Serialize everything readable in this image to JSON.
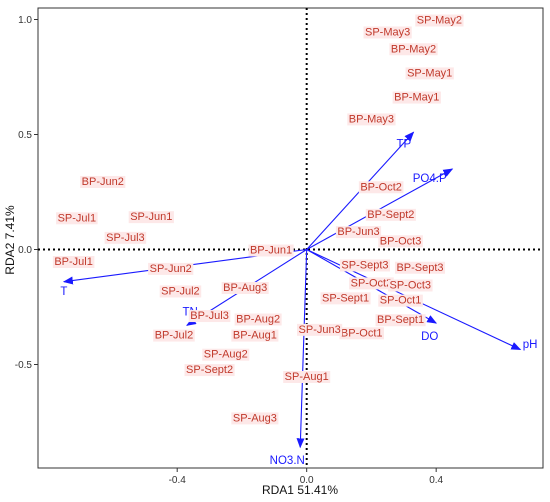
{
  "chart_data": {
    "type": "scatter",
    "title": "",
    "xlabel": "RDA1 51.41%",
    "ylabel": "RDA2 7.41%",
    "xlim": [
      -0.83,
      0.73
    ],
    "ylim": [
      -0.95,
      1.05
    ],
    "x_ticks": [
      -0.4,
      0.0,
      0.4
    ],
    "x_tick_labels": [
      "-0.4",
      "0.0",
      "0.4"
    ],
    "y_ticks": [
      -0.5,
      0.0,
      0.5,
      1.0
    ],
    "y_tick_labels": [
      "-0.5",
      "0.0",
      "0.5",
      "1.0"
    ],
    "grid": false,
    "reference_lines": {
      "x": 0,
      "y": 0,
      "style": "dotted"
    },
    "colors": {
      "site_text": "#c0392b",
      "site_background": "#fde8e8",
      "vector": "#1a1aff",
      "axis": "#333333"
    },
    "sites": [
      {
        "label": "SP-May2",
        "x": 0.41,
        "y": 1.0
      },
      {
        "label": "SP-May3",
        "x": 0.25,
        "y": 0.948
      },
      {
        "label": "BP-May2",
        "x": 0.33,
        "y": 0.875
      },
      {
        "label": "SP-May1",
        "x": 0.38,
        "y": 0.77
      },
      {
        "label": "BP-May1",
        "x": 0.34,
        "y": 0.665
      },
      {
        "label": "BP-May3",
        "x": 0.2,
        "y": 0.57
      },
      {
        "label": "BP-Oct2",
        "x": 0.23,
        "y": 0.275
      },
      {
        "label": "BP-Sept2",
        "x": 0.26,
        "y": 0.155
      },
      {
        "label": "BP-Jun3",
        "x": 0.16,
        "y": 0.08
      },
      {
        "label": "BP-Oct3",
        "x": 0.29,
        "y": 0.04
      },
      {
        "label": "SP-Sept3",
        "x": 0.18,
        "y": -0.065
      },
      {
        "label": "BP-Sept3",
        "x": 0.35,
        "y": -0.075
      },
      {
        "label": "SP-Oct2",
        "x": 0.2,
        "y": -0.143
      },
      {
        "label": "SP-Oct3",
        "x": 0.32,
        "y": -0.152
      },
      {
        "label": "SP-Sept1",
        "x": 0.12,
        "y": -0.208
      },
      {
        "label": "SP-Oct1",
        "x": 0.29,
        "y": -0.218
      },
      {
        "label": "BP-Sept1",
        "x": 0.29,
        "y": -0.303
      },
      {
        "label": "BP-Oct1",
        "x": 0.17,
        "y": -0.36
      },
      {
        "label": "SP-Jun3",
        "x": 0.04,
        "y": -0.345
      },
      {
        "label": "SP-Aug1",
        "x": 0.0,
        "y": -0.55
      },
      {
        "label": "SP-Aug3",
        "x": -0.16,
        "y": -0.73
      },
      {
        "label": "BP-Jun2",
        "x": -0.63,
        "y": 0.298
      },
      {
        "label": "SP-Jun1",
        "x": -0.48,
        "y": 0.145
      },
      {
        "label": "SP-Jul1",
        "x": -0.71,
        "y": 0.14
      },
      {
        "label": "SP-Jul3",
        "x": -0.56,
        "y": 0.055
      },
      {
        "label": "BP-Jul1",
        "x": -0.72,
        "y": -0.05
      },
      {
        "label": "SP-Jun2",
        "x": -0.42,
        "y": -0.08
      },
      {
        "label": "BP-Jun1",
        "x": -0.11,
        "y": 0.0
      },
      {
        "label": "BP-Aug3",
        "x": -0.19,
        "y": -0.163
      },
      {
        "label": "SP-Jul2",
        "x": -0.39,
        "y": -0.178
      },
      {
        "label": "BP-Jul3",
        "x": -0.3,
        "y": -0.285
      },
      {
        "label": "BP-Aug2",
        "x": -0.15,
        "y": -0.3
      },
      {
        "label": "BP-Aug1",
        "x": -0.16,
        "y": -0.37
      },
      {
        "label": "BP-Jul2",
        "x": -0.41,
        "y": -0.37
      },
      {
        "label": "SP-Aug2",
        "x": -0.25,
        "y": -0.453
      },
      {
        "label": "SP-Sept2",
        "x": -0.3,
        "y": -0.52
      }
    ],
    "vectors": [
      {
        "label": "TP",
        "x": 0.33,
        "y": 0.51,
        "label_x": 0.3,
        "label_y": 0.46
      },
      {
        "label": "PO4.P",
        "x": 0.45,
        "y": 0.35,
        "label_x": 0.38,
        "label_y": 0.31
      },
      {
        "label": "T",
        "x": -0.75,
        "y": -0.14,
        "label_x": -0.75,
        "label_y": -0.18
      },
      {
        "label": "TN",
        "x": -0.37,
        "y": -0.33,
        "label_x": -0.36,
        "label_y": -0.27
      },
      {
        "label": "NO3.N",
        "x": -0.02,
        "y": -0.86,
        "label_x": -0.06,
        "label_y": -0.915
      },
      {
        "label": "DO",
        "x": 0.4,
        "y": -0.32,
        "label_x": 0.38,
        "label_y": -0.375
      },
      {
        "label": "pH",
        "x": 0.66,
        "y": -0.435,
        "label_x": 0.69,
        "label_y": -0.41
      }
    ]
  }
}
